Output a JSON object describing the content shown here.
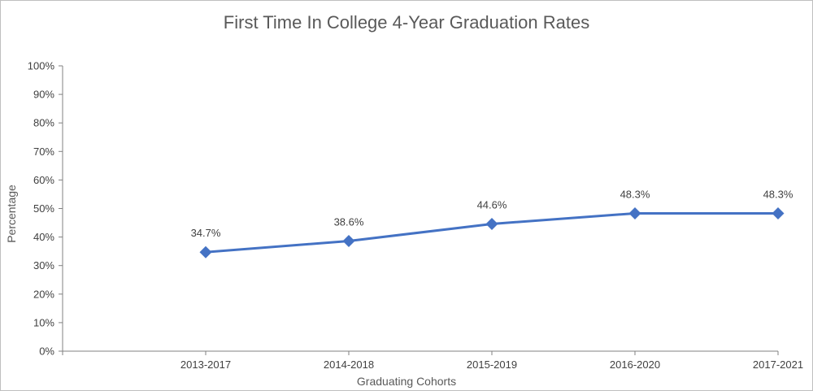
{
  "chart_data": {
    "type": "line",
    "title": "First Time In College 4-Year Graduation Rates",
    "xlabel": "Graduating Cohorts",
    "ylabel": "Percentage",
    "categories": [
      "2013-2017",
      "2014-2018",
      "2015-2019",
      "2016-2020",
      "2017-2021"
    ],
    "series": [
      {
        "values": [
          34.7,
          38.6,
          44.6,
          48.3,
          48.3
        ],
        "labels": [
          "34.7%",
          "38.6%",
          "44.6%",
          "48.3%",
          "48.3%"
        ]
      }
    ],
    "yticks": [
      "0%",
      "10%",
      "20%",
      "30%",
      "40%",
      "50%",
      "60%",
      "70%",
      "80%",
      "90%",
      "100%"
    ],
    "ylim": [
      0,
      100
    ],
    "grid": false,
    "legend": "none",
    "colors": {
      "line": "#4472c4",
      "axis": "#808080"
    }
  }
}
